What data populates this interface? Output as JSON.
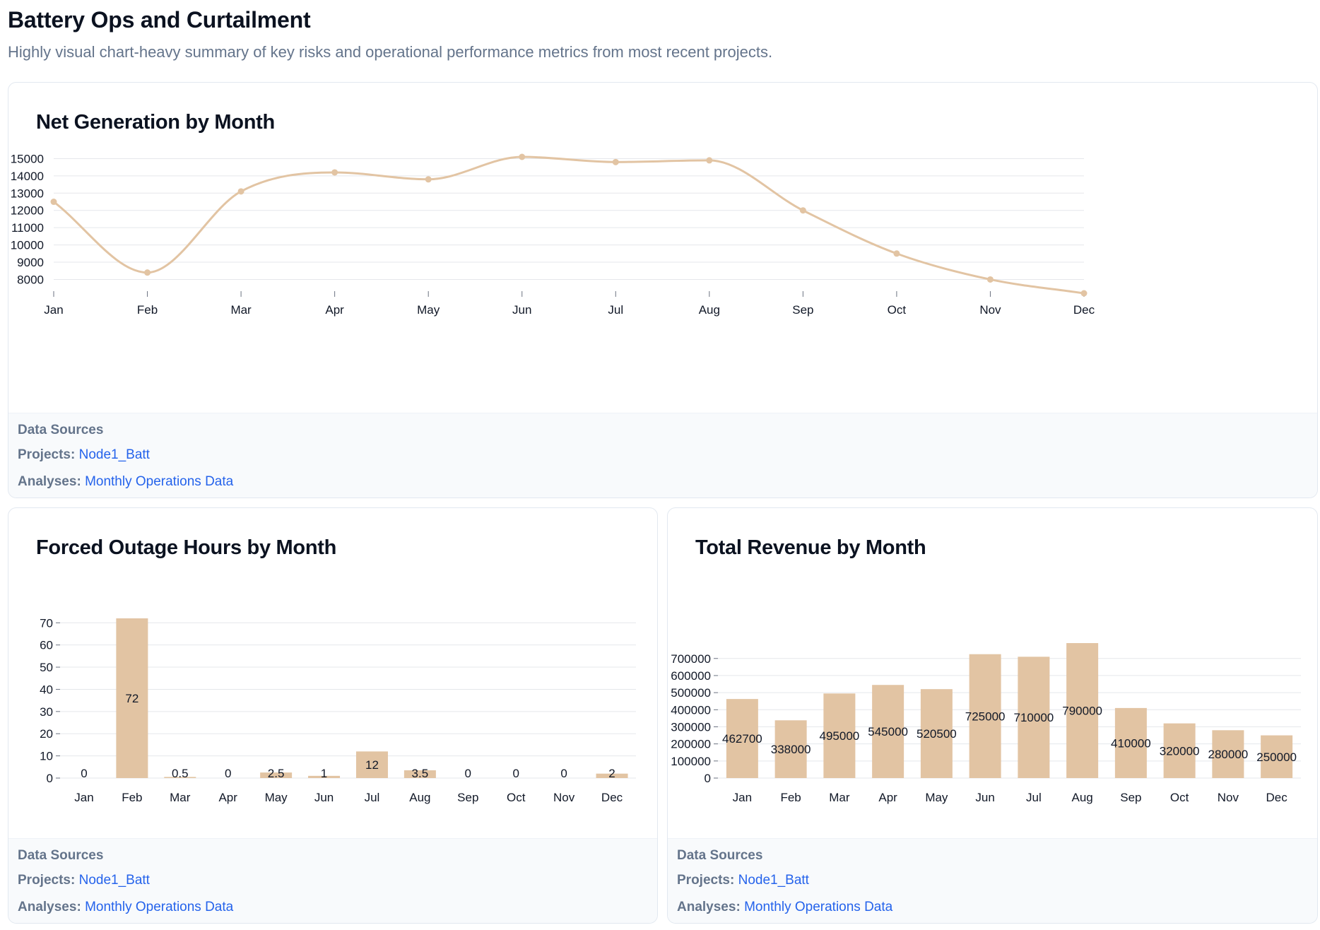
{
  "page": {
    "title": "Battery Ops and Curtailment",
    "subtitle": "Highly visual chart-heavy summary of key risks and operational performance metrics from most recent projects."
  },
  "colors": {
    "series": "#e2c4a3",
    "grid": "#e5e7eb",
    "link": "#2563eb"
  },
  "cards": [
    {
      "title": "Net Generation by Month",
      "sources": {
        "heading": "Data Sources",
        "projects_label": "Projects:",
        "projects_value": "Node1_Batt",
        "analyses_label": "Analyses:",
        "analyses_value": "Monthly Operations Data"
      }
    },
    {
      "title": "Forced Outage Hours by Month",
      "sources": {
        "heading": "Data Sources",
        "projects_label": "Projects:",
        "projects_value": "Node1_Batt",
        "analyses_label": "Analyses:",
        "analyses_value": "Monthly Operations Data"
      }
    },
    {
      "title": "Total Revenue by Month",
      "sources": {
        "heading": "Data Sources",
        "projects_label": "Projects:",
        "projects_value": "Node1_Batt",
        "analyses_label": "Analyses:",
        "analyses_value": "Monthly Operations Data"
      }
    }
  ],
  "chart_data": [
    {
      "type": "line",
      "title": "Net Generation by Month",
      "categories": [
        "Jan",
        "Feb",
        "Mar",
        "Apr",
        "May",
        "Jun",
        "Jul",
        "Aug",
        "Sep",
        "Oct",
        "Nov",
        "Dec"
      ],
      "values": [
        12500,
        8400,
        13100,
        14200,
        13800,
        15100,
        14800,
        14900,
        12000,
        9500,
        8000,
        7200
      ],
      "yticks": [
        8000,
        9000,
        10000,
        11000,
        12000,
        13000,
        14000,
        15000
      ],
      "ylim": [
        7200,
        15100
      ],
      "xlabel": "",
      "ylabel": "",
      "grid": true,
      "legend": "none"
    },
    {
      "type": "bar",
      "title": "Forced Outage Hours by Month",
      "categories": [
        "Jan",
        "Feb",
        "Mar",
        "Apr",
        "May",
        "Jun",
        "Jul",
        "Aug",
        "Sep",
        "Oct",
        "Nov",
        "Dec"
      ],
      "values": [
        0,
        72,
        0.5,
        0,
        2.5,
        1,
        12,
        3.5,
        0,
        0,
        0,
        2
      ],
      "labels": [
        "0",
        "72",
        "0.5",
        "0",
        "2.5",
        "1",
        "12",
        "3.5",
        "0",
        "0",
        "0",
        "2"
      ],
      "yticks": [
        0,
        10,
        20,
        30,
        40,
        50,
        60,
        70
      ],
      "ylim": [
        0,
        72
      ],
      "xlabel": "",
      "ylabel": "",
      "grid": true,
      "legend": "none"
    },
    {
      "type": "bar",
      "title": "Total Revenue by Month",
      "categories": [
        "Jan",
        "Feb",
        "Mar",
        "Apr",
        "May",
        "Jun",
        "Jul",
        "Aug",
        "Sep",
        "Oct",
        "Nov",
        "Dec"
      ],
      "values": [
        462700,
        338000,
        495000,
        545000,
        520500,
        725000,
        710000,
        790000,
        410000,
        320000,
        280000,
        250000
      ],
      "labels": [
        "462700",
        "338000",
        "495000",
        "545000",
        "520500",
        "725000",
        "710000",
        "790000",
        "410000",
        "320000",
        "280000",
        "250000"
      ],
      "yticks": [
        0,
        100000,
        200000,
        300000,
        400000,
        500000,
        600000,
        700000
      ],
      "ylim": [
        0,
        790000
      ],
      "xlabel": "",
      "ylabel": "",
      "grid": true,
      "legend": "none"
    }
  ]
}
